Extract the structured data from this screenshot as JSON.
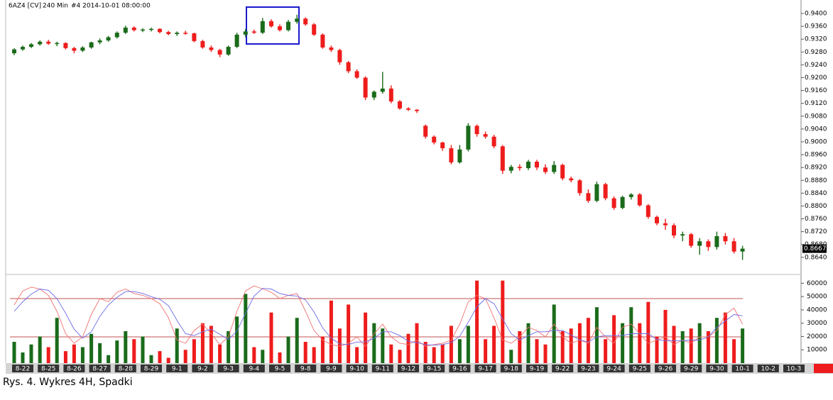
{
  "chart_data": {
    "type": "candlestick",
    "symbol": "6AZ4 [CV]",
    "interval": "240 Min",
    "bar_info": "#4 2014-10-01 08:00:00",
    "caption": "Rys. 4. Wykres 4H, Spadki",
    "categories": [
      "8-22",
      "8-25",
      "8-26",
      "8-27",
      "8-28",
      "8-29",
      "9-1",
      "9-2",
      "9-3",
      "9-4",
      "9-5",
      "9-8",
      "9-9",
      "9-10",
      "9-11",
      "9-12",
      "9-15",
      "9-16",
      "9-17",
      "9-18",
      "9-19",
      "9-22",
      "9-23",
      "9-24",
      "9-25",
      "9-26",
      "9-29",
      "9-30",
      "10-1",
      "10-2",
      "10-3"
    ],
    "up_color": "#1a6b1a",
    "down_color": "#ee1c1c",
    "ohlc": [
      [
        0.9276,
        0.9292,
        0.927,
        0.9288
      ],
      [
        0.9288,
        0.93,
        0.9284,
        0.9296
      ],
      [
        0.9296,
        0.9308,
        0.9292,
        0.9304
      ],
      [
        0.9304,
        0.9316,
        0.93,
        0.9312
      ],
      [
        0.9312,
        0.9318,
        0.9302,
        0.9306
      ],
      [
        0.9306,
        0.9312,
        0.9298,
        0.9308
      ],
      [
        0.9308,
        0.931,
        0.9288,
        0.9292
      ],
      [
        0.9292,
        0.9296,
        0.9276,
        0.9284
      ],
      [
        0.9284,
        0.9298,
        0.928,
        0.9294
      ],
      [
        0.9294,
        0.9312,
        0.929,
        0.931
      ],
      [
        0.931,
        0.9322,
        0.9304,
        0.9316
      ],
      [
        0.9316,
        0.933,
        0.9312,
        0.9326
      ],
      [
        0.9326,
        0.9344,
        0.9322,
        0.934
      ],
      [
        0.934,
        0.9362,
        0.9336,
        0.9356
      ],
      [
        0.9356,
        0.936,
        0.9344,
        0.9348
      ],
      [
        0.9348,
        0.9354,
        0.9342,
        0.935
      ],
      [
        0.935,
        0.9356,
        0.9344,
        0.9352
      ],
      [
        0.9352,
        0.9354,
        0.9338,
        0.9342
      ],
      [
        0.9342,
        0.9346,
        0.9332,
        0.9336
      ],
      [
        0.9336,
        0.9344,
        0.933,
        0.934
      ],
      [
        0.934,
        0.9346,
        0.9334,
        0.9338
      ],
      [
        0.9338,
        0.934,
        0.931,
        0.9314
      ],
      [
        0.9314,
        0.9318,
        0.929,
        0.9294
      ],
      [
        0.9294,
        0.93,
        0.928,
        0.9286
      ],
      [
        0.9286,
        0.929,
        0.9264,
        0.9272
      ],
      [
        0.9272,
        0.93,
        0.9268,
        0.9296
      ],
      [
        0.9296,
        0.934,
        0.9292,
        0.9334
      ],
      [
        0.9334,
        0.9352,
        0.9326,
        0.9344
      ],
      [
        0.9344,
        0.935,
        0.9336,
        0.934
      ],
      [
        0.934,
        0.9386,
        0.9336,
        0.9376
      ],
      [
        0.9376,
        0.9382,
        0.9356,
        0.936
      ],
      [
        0.936,
        0.9366,
        0.9344,
        0.9348
      ],
      [
        0.9348,
        0.938,
        0.9344,
        0.9374
      ],
      [
        0.9374,
        0.9396,
        0.9368,
        0.9384
      ],
      [
        0.9384,
        0.9388,
        0.9362,
        0.9366
      ],
      [
        0.9366,
        0.937,
        0.933,
        0.9334
      ],
      [
        0.9334,
        0.9338,
        0.929,
        0.9294
      ],
      [
        0.9294,
        0.93,
        0.928,
        0.9286
      ],
      [
        0.9286,
        0.929,
        0.924,
        0.9248
      ],
      [
        0.9248,
        0.9252,
        0.9214,
        0.922
      ],
      [
        0.922,
        0.9226,
        0.9196,
        0.92
      ],
      [
        0.92,
        0.9204,
        0.913,
        0.9138
      ],
      [
        0.9138,
        0.916,
        0.913,
        0.9156
      ],
      [
        0.9156,
        0.9218,
        0.915,
        0.9166
      ],
      [
        0.9166,
        0.9176,
        0.912,
        0.9126
      ],
      [
        0.9126,
        0.913,
        0.91,
        0.9104
      ],
      [
        0.9104,
        0.9108,
        0.9096,
        0.91
      ],
      [
        0.91,
        0.9102,
        0.909,
        0.9096
      ],
      [
        0.905,
        0.9054,
        0.901,
        0.9016
      ],
      [
        0.9016,
        0.902,
        0.8992,
        0.8998
      ],
      [
        0.8998,
        0.9,
        0.8972,
        0.898
      ],
      [
        0.898,
        0.899,
        0.893,
        0.8936
      ],
      [
        0.8936,
        0.899,
        0.8932,
        0.8976
      ],
      [
        0.8976,
        0.9058,
        0.897,
        0.905
      ],
      [
        0.905,
        0.9054,
        0.9016,
        0.9024
      ],
      [
        0.9024,
        0.9032,
        0.901,
        0.9016
      ],
      [
        0.9016,
        0.9022,
        0.898,
        0.8986
      ],
      [
        0.8986,
        0.899,
        0.89,
        0.891
      ],
      [
        0.891,
        0.8928,
        0.8902,
        0.8922
      ],
      [
        0.8922,
        0.893,
        0.891,
        0.8918
      ],
      [
        0.8918,
        0.8944,
        0.8912,
        0.8938
      ],
      [
        0.8938,
        0.8944,
        0.8912,
        0.892
      ],
      [
        0.892,
        0.893,
        0.89,
        0.8906
      ],
      [
        0.8906,
        0.894,
        0.89,
        0.8928
      ],
      [
        0.8928,
        0.8932,
        0.888,
        0.8886
      ],
      [
        0.8886,
        0.8892,
        0.8874,
        0.888
      ],
      [
        0.888,
        0.8884,
        0.8832,
        0.884
      ],
      [
        0.884,
        0.8852,
        0.881,
        0.8816
      ],
      [
        0.8816,
        0.8876,
        0.8812,
        0.8868
      ],
      [
        0.8868,
        0.8872,
        0.8818,
        0.8824
      ],
      [
        0.8824,
        0.883,
        0.8788,
        0.8794
      ],
      [
        0.8794,
        0.8832,
        0.879,
        0.8828
      ],
      [
        0.8828,
        0.884,
        0.882,
        0.8836
      ],
      [
        0.8836,
        0.884,
        0.8798,
        0.8802
      ],
      [
        0.8802,
        0.8806,
        0.876,
        0.8766
      ],
      [
        0.8766,
        0.877,
        0.874,
        0.8746
      ],
      [
        0.8746,
        0.876,
        0.8726,
        0.874
      ],
      [
        0.874,
        0.8746,
        0.87,
        0.8708
      ],
      [
        0.8708,
        0.872,
        0.869,
        0.8712
      ],
      [
        0.8712,
        0.8716,
        0.867,
        0.8676
      ],
      [
        0.8676,
        0.87,
        0.8648,
        0.869
      ],
      [
        0.869,
        0.8696,
        0.866,
        0.8672
      ],
      [
        0.8672,
        0.872,
        0.8664,
        0.8706
      ],
      [
        0.8706,
        0.8716,
        0.868,
        0.869
      ],
      [
        0.869,
        0.87,
        0.8652,
        0.8658
      ],
      [
        0.8658,
        0.8676,
        0.8632,
        0.8667
      ]
    ],
    "ylim": [
      0.8591,
      0.9442
    ],
    "yticks": [
      {
        "value": 0.94,
        "label": "0.9400"
      },
      {
        "value": 0.936,
        "label": "0.9360"
      },
      {
        "value": 0.932,
        "label": "0.9320"
      },
      {
        "value": 0.928,
        "label": "0.9280"
      },
      {
        "value": 0.924,
        "label": "0.9240"
      },
      {
        "value": 0.92,
        "label": "0.9200"
      },
      {
        "value": 0.916,
        "label": "0.9160"
      },
      {
        "value": 0.912,
        "label": "0.9120"
      },
      {
        "value": 0.908,
        "label": "0.9080"
      },
      {
        "value": 0.904,
        "label": "0.9040"
      },
      {
        "value": 0.9,
        "label": "0.9000"
      },
      {
        "value": 0.896,
        "label": "0.8960"
      },
      {
        "value": 0.892,
        "label": "0.8920"
      },
      {
        "value": 0.888,
        "label": "0.8880"
      },
      {
        "value": 0.884,
        "label": "0.8840"
      },
      {
        "value": 0.88,
        "label": "0.8800"
      },
      {
        "value": 0.876,
        "label": "0.8760"
      },
      {
        "value": 0.872,
        "label": "0.8720"
      },
      {
        "value": 0.868,
        "label": "0.8680"
      },
      {
        "value": 0.864,
        "label": "0.8640"
      }
    ],
    "last_price": 0.8667,
    "volume": [
      16000,
      8000,
      14000,
      20000,
      12000,
      34000,
      9000,
      14000,
      12000,
      22000,
      15000,
      6000,
      17000,
      24000,
      18000,
      20000,
      6000,
      9000,
      4000,
      26000,
      10000,
      18000,
      30000,
      28000,
      14000,
      24000,
      35000,
      52000,
      12000,
      10000,
      38000,
      8000,
      20000,
      34000,
      16000,
      12000,
      20000,
      47000,
      26000,
      44000,
      12000,
      38000,
      30000,
      26000,
      14000,
      10000,
      22000,
      30000,
      16000,
      12000,
      14000,
      28000,
      18000,
      28000,
      62000,
      18000,
      28000,
      62000,
      10000,
      24000,
      30000,
      18000,
      14000,
      44000,
      24000,
      26000,
      30000,
      34000,
      42000,
      18000,
      36000,
      30000,
      42000,
      30000,
      46000,
      20000,
      40000,
      28000,
      24000,
      26000,
      30000,
      24000,
      34000,
      38000,
      18000,
      26000
    ],
    "vol_ylim": [
      0,
      65000
    ],
    "vol_yticks": [
      10000,
      20000,
      30000,
      40000,
      50000,
      60000
    ],
    "stoch_k": [
      70,
      92,
      98,
      95,
      85,
      60,
      25,
      10,
      20,
      55,
      80,
      75,
      90,
      95,
      88,
      85,
      80,
      72,
      50,
      15,
      10,
      30,
      40,
      25,
      8,
      20,
      60,
      92,
      100,
      95,
      90,
      80,
      85,
      88,
      60,
      30,
      15,
      8,
      5,
      10,
      20,
      5,
      25,
      40,
      20,
      10,
      8,
      15,
      5,
      8,
      10,
      15,
      40,
      75,
      85,
      80,
      50,
      15,
      10,
      20,
      35,
      30,
      20,
      40,
      20,
      10,
      15,
      10,
      35,
      20,
      10,
      35,
      40,
      25,
      10,
      15,
      20,
      8,
      15,
      10,
      20,
      20,
      30,
      55,
      65,
      40
    ],
    "stoch_d": [
      60,
      75,
      87,
      95,
      93,
      80,
      57,
      32,
      18,
      28,
      52,
      70,
      82,
      91,
      91,
      88,
      83,
      79,
      69,
      46,
      25,
      22,
      28,
      32,
      24,
      16,
      29,
      57,
      84,
      96,
      95,
      88,
      85,
      84,
      78,
      59,
      34,
      18,
      9,
      8,
      12,
      12,
      18,
      28,
      28,
      22,
      13,
      11,
      8,
      7,
      8,
      11,
      21,
      43,
      67,
      80,
      72,
      48,
      25,
      15,
      22,
      28,
      28,
      30,
      30,
      23,
      15,
      12,
      20,
      22,
      22,
      22,
      25,
      25,
      25,
      16,
      14,
      14,
      14,
      15,
      15,
      20,
      35,
      45,
      55,
      53
    ],
    "stoch_k_color": "#f07070",
    "stoch_d_color": "#6a6ae8",
    "osc_levels": [
      80,
      20
    ],
    "osc_level_color": "#c05050"
  }
}
